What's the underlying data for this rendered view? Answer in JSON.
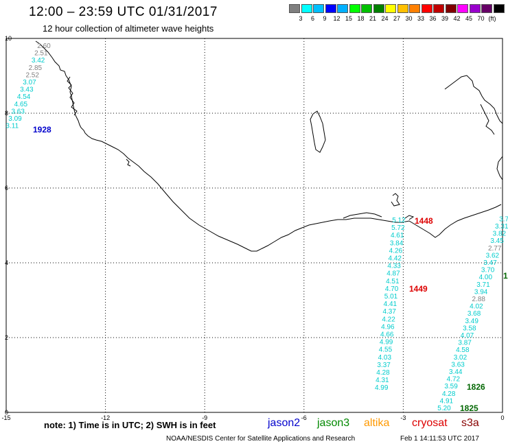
{
  "header": {
    "title": "12:00 – 23:59 UTC 01/31/2017",
    "subtitle": "12 hour collection of altimeter wave heights"
  },
  "scale": {
    "unit": "(ft)",
    "colors": [
      "#7f7f7f",
      "#00ffff",
      "#00bfff",
      "#0000ff",
      "#00b0ff",
      "#00ff00",
      "#00c000",
      "#008000",
      "#ffff00",
      "#ffc000",
      "#ff8000",
      "#ff0000",
      "#c00000",
      "#800000",
      "#ff00ff",
      "#9900cc",
      "#660066",
      "#000000"
    ],
    "labels": [
      "3",
      "6",
      "9",
      "12",
      "15",
      "18",
      "21",
      "24",
      "27",
      "30",
      "33",
      "36",
      "39",
      "42",
      "45",
      "70"
    ]
  },
  "axes": {
    "x_ticks": [
      "-15",
      "-12",
      "-9",
      "-6",
      "-3",
      "0"
    ],
    "y_ticks": [
      "0",
      "2",
      "4",
      "6",
      "8",
      "10"
    ]
  },
  "tracks": [
    {
      "satellite": "jason2",
      "time": "1928",
      "time_color": "#0000cc",
      "values": [
        "2.60",
        "2.51",
        "3.42",
        "2.85",
        "2.52",
        "3.07",
        "3.43",
        "4.54",
        "4.65",
        "3.63",
        "3.09",
        "3.11"
      ],
      "colors": [
        "#808080",
        "#808080",
        "#00cccc",
        "#808080",
        "#808080",
        "#00cccc",
        "#00cccc",
        "#00cccc",
        "#00cccc",
        "#00cccc",
        "#00cccc",
        "#00cccc"
      ]
    },
    {
      "satellite": "cryosat",
      "time_top": "1448",
      "time_bottom": "1449",
      "time_color": "#dd0000",
      "values": [
        "5.12",
        "5.72",
        "4.61",
        "3.84",
        "4.26",
        "4.42",
        "4.33",
        "4.87",
        "4.51",
        "4.70",
        "5.01",
        "4.41",
        "4.37",
        "4.22",
        "4.96",
        "4.66",
        "4.99",
        "4.55",
        "4.03",
        "3.37",
        "4.28",
        "4.31",
        "4.99"
      ]
    },
    {
      "satellite": "jason3",
      "time_top": "1825",
      "time_middle": "1826",
      "time_edge": "1",
      "time_color": "#006600",
      "values": [
        "5.20",
        "4.91",
        "4.28",
        "3.59",
        "4.72",
        "3.44",
        "3.63",
        "3.02",
        "4.58",
        "3.87",
        "4.07",
        "3.58",
        "3.49",
        "3.68",
        "4.02",
        "2.88",
        "3.94",
        "3.71",
        "4.00",
        "3.70",
        "3.47",
        "3.62",
        "2.77",
        "3.45",
        "3.82",
        "3.31",
        "3.7"
      ],
      "colors": [
        "#00cccc",
        "#00cccc",
        "#00cccc",
        "#00cccc",
        "#00cccc",
        "#00cccc",
        "#00cccc",
        "#00cccc",
        "#00cccc",
        "#00cccc",
        "#00cccc",
        "#00cccc",
        "#00cccc",
        "#00cccc",
        "#00cccc",
        "#808080",
        "#00cccc",
        "#00cccc",
        "#00cccc",
        "#00cccc",
        "#00cccc",
        "#00cccc",
        "#808080",
        "#00cccc",
        "#00cccc",
        "#00cccc",
        "#00cccc"
      ]
    }
  ],
  "footer": {
    "note": "note: 1) Time is in UTC; 2) SWH is in feet",
    "satellites": [
      {
        "name": "jason2",
        "color": "#0000cc"
      },
      {
        "name": "jason3",
        "color": "#008800"
      },
      {
        "name": "altika",
        "color": "#ff9900"
      },
      {
        "name": "cryosat",
        "color": "#dd0000"
      },
      {
        "name": "s3a",
        "color": "#880000"
      }
    ],
    "credit": "NOAA/NESDIS Center for Satellite Applications and Research",
    "timestamp": "Feb  1 14:11:53 UTC 2017"
  }
}
